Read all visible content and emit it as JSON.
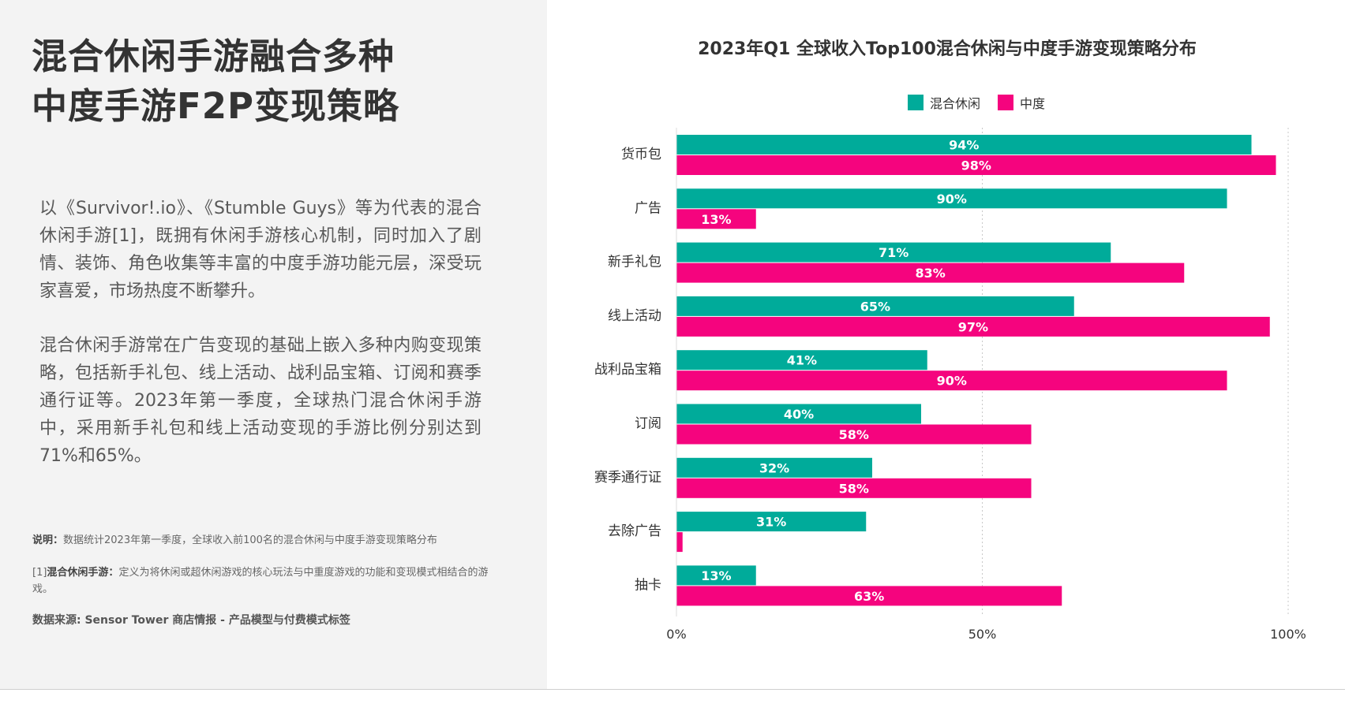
{
  "left": {
    "headline": [
      "混合休闲手游融合多种",
      "中度手游F2P变现策略"
    ],
    "paragraph1": "以《Survivor!.io》、《Stumble Guys》等为代表的混合休闲手游[1]，既拥有休闲手游核心机制，同时加入了剧情、装饰、角色收集等丰富的中度手游功能元层，深受玩家喜爱，市场热度不断攀升。",
    "paragraph2": "混合休闲手游常在广告变现的基础上嵌入多种内购变现策略，包括新手礼包、线上活动、战利品宝箱、订阅和赛季通行证等。2023年第一季度，全球热门混合休闲手游中，采用新手礼包和线上活动变现的手游比例分别达到71%和65%。",
    "note1_label": "说明：",
    "note1_text": "数据统计2023年第一季度，全球收入前100名的混合休闲与中度手游变现策略分布",
    "note2_label": "混合休闲手游：",
    "note2_prefix": "[1]",
    "note2_text": "定义为将休闲或超休闲游戏的核心玩法与中重度游戏的功能和变现模式相结合的游戏。",
    "source": "数据来源: Sensor Tower 商店情报 - 产品模型与付费模式标签"
  },
  "colors": {
    "casual": "#00ab9a",
    "midcore": "#f5047e"
  },
  "chart_data": {
    "type": "bar",
    "orientation": "horizontal",
    "title": "2023年Q1 全球收入Top100混合休闲与中度手游变现策略分布",
    "categories": [
      "货币包",
      "广告",
      "新手礼包",
      "线上活动",
      "战利品宝箱",
      "订阅",
      "赛季通行证",
      "去除广告",
      "抽卡"
    ],
    "series": [
      {
        "name": "混合休闲",
        "values": [
          94,
          90,
          71,
          65,
          41,
          40,
          32,
          31,
          13
        ],
        "labels": [
          "94%",
          "90%",
          "71%",
          "65%",
          "41%",
          "40%",
          "32%",
          "31%",
          "13%"
        ]
      },
      {
        "name": "中度",
        "values": [
          98,
          13,
          83,
          97,
          90,
          58,
          58,
          1,
          63
        ],
        "labels": [
          "98%",
          "13%",
          "83%",
          "97%",
          "90%",
          "58%",
          "58%",
          "",
          "63%"
        ]
      }
    ],
    "xlim": [
      0,
      100
    ],
    "xticks": [
      0,
      50,
      100
    ],
    "xtick_labels": [
      "0%",
      "50%",
      "100%"
    ],
    "legend": "top-center",
    "grid": "vertical-dotted"
  }
}
